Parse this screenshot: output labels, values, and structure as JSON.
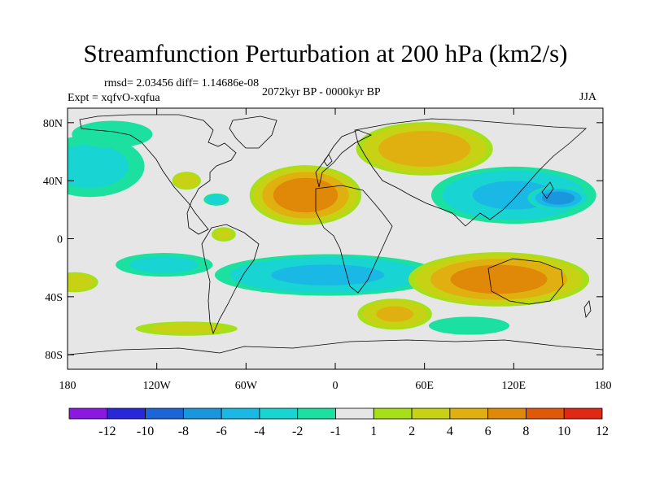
{
  "chart_data": {
    "type": "heatmap",
    "title": "Streamfunction Perturbation at 200 hPa (km2/s)",
    "stats_text": "rmsd= 2.03456 diff= 1.14686e-08",
    "period": "2072kyr BP - 0000kyr BP",
    "experiment": "Expt = xqfvO-xqfua",
    "season": "JJA",
    "x_ticks": [
      {
        "value": -180,
        "label": "180"
      },
      {
        "value": -120,
        "label": "120W"
      },
      {
        "value": -60,
        "label": "60W"
      },
      {
        "value": 0,
        "label": "0"
      },
      {
        "value": 60,
        "label": "60E"
      },
      {
        "value": 120,
        "label": "120E"
      },
      {
        "value": 180,
        "label": "180"
      }
    ],
    "y_ticks": [
      {
        "value": 80,
        "label": "80N"
      },
      {
        "value": 40,
        "label": "40N"
      },
      {
        "value": 0,
        "label": "0"
      },
      {
        "value": -40,
        "label": "40S"
      },
      {
        "value": -80,
        "label": "80S"
      }
    ],
    "xlim": [
      -180,
      180
    ],
    "ylim": [
      -90,
      90
    ],
    "colorbar_labels": [
      "-12",
      "-10",
      "-8",
      "-6",
      "-4",
      "-2",
      "-1",
      "1",
      "2",
      "4",
      "6",
      "8",
      "10",
      "12"
    ],
    "colors": [
      "#8b18e0",
      "#2828d8",
      "#1c64d8",
      "#1a96de",
      "#1ab8e4",
      "#18d4d2",
      "#1ce0a0",
      "#e6e6e6",
      "#a6e018",
      "#c8d214",
      "#e0b010",
      "#e08808",
      "#e05808",
      "#e02814"
    ],
    "anomalies": [
      {
        "lon": -165,
        "lat": 50,
        "rx": 45,
        "ry": 26,
        "value": -2
      },
      {
        "lon": -150,
        "lat": 72,
        "rx": 35,
        "ry": 12,
        "value": -1.5
      },
      {
        "lon": -100,
        "lat": 40,
        "rx": 11,
        "ry": 7,
        "value": 3.5
      },
      {
        "lon": -80,
        "lat": 27,
        "rx": 10,
        "ry": 5,
        "value": -2.5
      },
      {
        "lon": -75,
        "lat": 3,
        "rx": 10,
        "ry": 6,
        "value": 2
      },
      {
        "lon": -20,
        "lat": 30,
        "rx": 40,
        "ry": 22,
        "value": 7.5
      },
      {
        "lon": 60,
        "lat": 62,
        "rx": 50,
        "ry": 20,
        "value": 5.5
      },
      {
        "lon": 120,
        "lat": 30,
        "rx": 62,
        "ry": 22,
        "value": -4
      },
      {
        "lon": 150,
        "lat": 28,
        "rx": 22,
        "ry": 9,
        "value": -7
      },
      {
        "lon": -5,
        "lat": -25,
        "rx": 85,
        "ry": 16,
        "value": -4
      },
      {
        "lon": -115,
        "lat": -18,
        "rx": 40,
        "ry": 10,
        "value": -2
      },
      {
        "lon": -175,
        "lat": -30,
        "rx": 18,
        "ry": 8,
        "value": 3
      },
      {
        "lon": 110,
        "lat": -28,
        "rx": 65,
        "ry": 20,
        "value": 7
      },
      {
        "lon": -100,
        "lat": -62,
        "rx": 42,
        "ry": 6,
        "value": 2
      },
      {
        "lon": 40,
        "lat": -52,
        "rx": 28,
        "ry": 12,
        "value": 4
      },
      {
        "lon": 90,
        "lat": -60,
        "rx": 35,
        "ry": 8,
        "value": -1.5
      }
    ]
  }
}
